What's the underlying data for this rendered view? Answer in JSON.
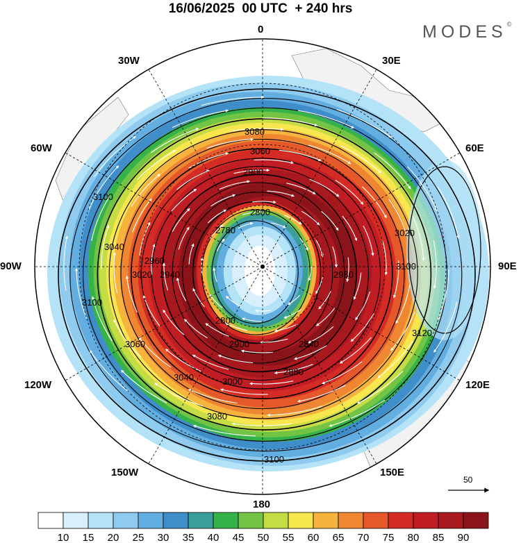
{
  "title": "16/06/2025  00 UTC  + 240 hrs",
  "brand": {
    "name": "MODES",
    "mark": "©"
  },
  "longitude_labels": [
    "0",
    "30E",
    "60E",
    "90E",
    "120E",
    "150E",
    "180",
    "150W",
    "120W",
    "90W",
    "60W",
    "30W"
  ],
  "contour_labels": [
    "3080",
    "3060",
    "3100",
    "3000",
    "2960",
    "2900",
    "2800",
    "2780",
    "3040",
    "2840",
    "2880",
    "2940",
    "3020",
    "3120",
    "2980"
  ],
  "wind_reference": {
    "label": "50"
  },
  "colorbar": {
    "tick_labels": [
      "10",
      "15",
      "20",
      "25",
      "30",
      "35",
      "40",
      "45",
      "50",
      "55",
      "60",
      "65",
      "70",
      "75",
      "80",
      "85",
      "90"
    ],
    "colors": [
      "#ffffff",
      "#d8f0fd",
      "#b4e2f7",
      "#8ecbee",
      "#62aee0",
      "#3f8dc9",
      "#3c9e98",
      "#36b24a",
      "#73c444",
      "#c6dc44",
      "#f7e64e",
      "#f6b43e",
      "#ef8632",
      "#e4582a",
      "#d42c25",
      "#c01d24",
      "#a8181f",
      "#8b141a"
    ]
  },
  "land_color": "#f2f2f2"
}
